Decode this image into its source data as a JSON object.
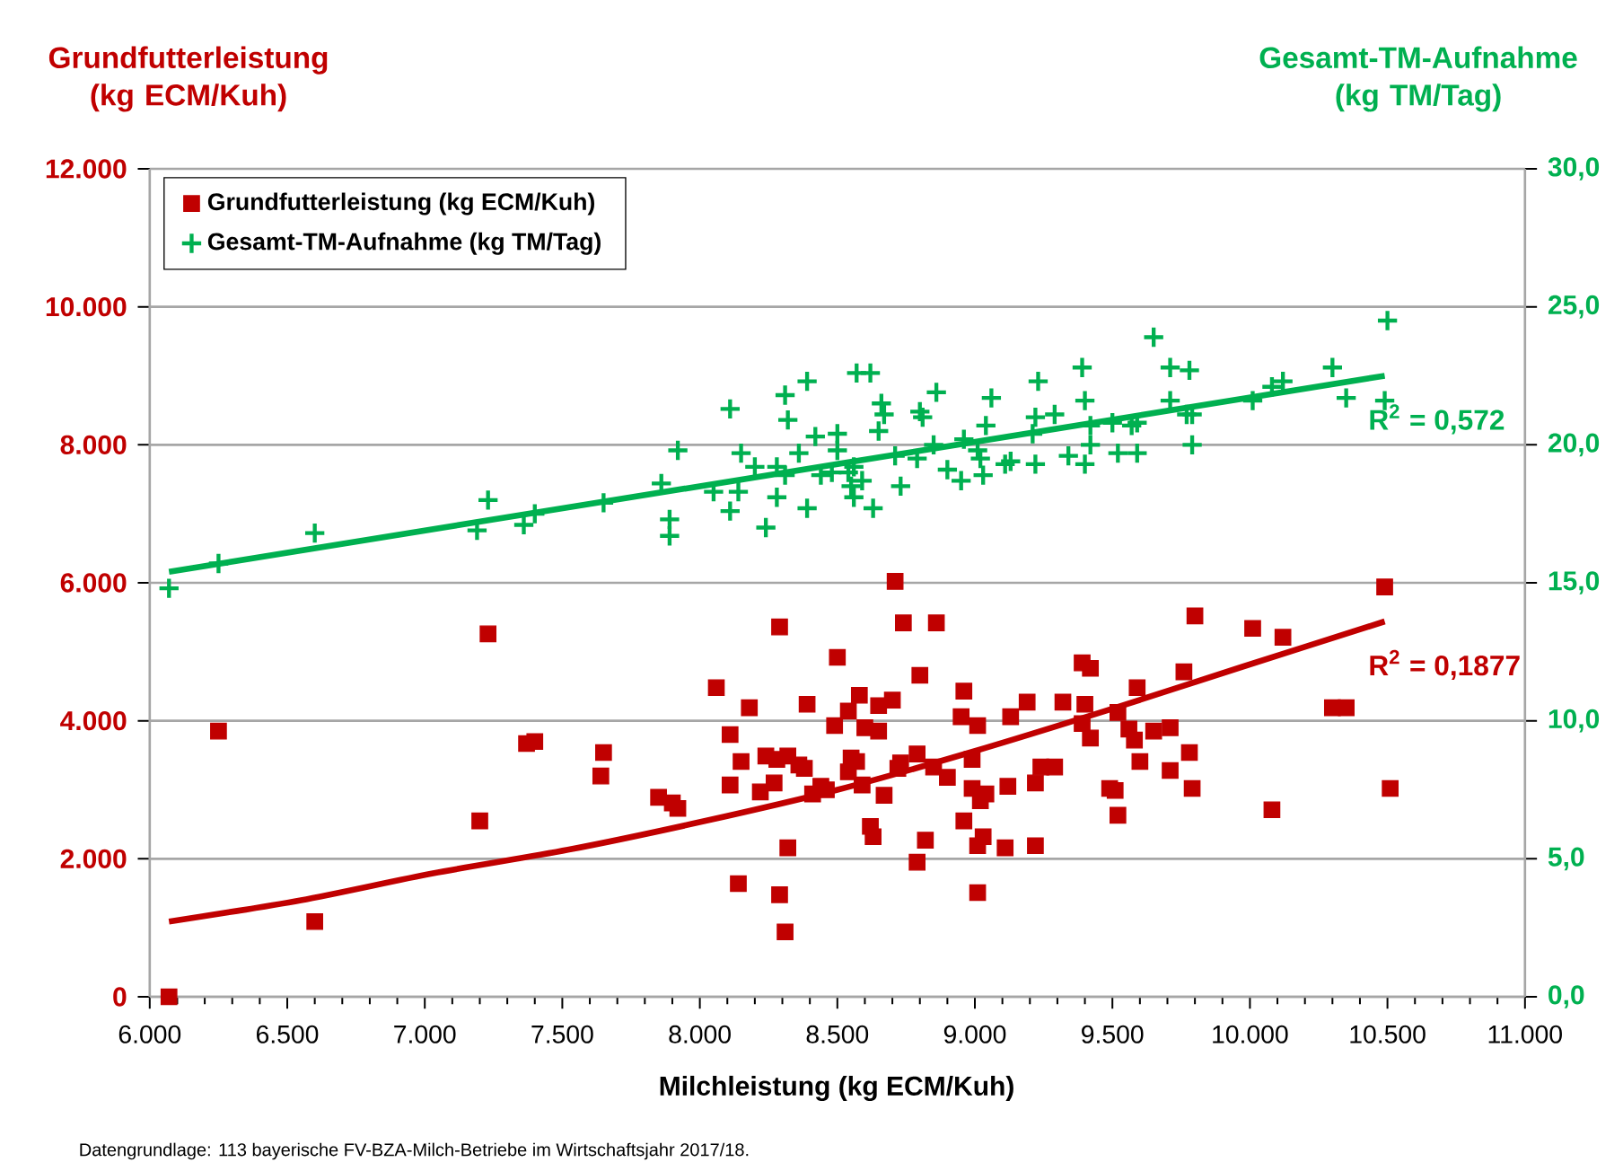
{
  "chart_data": {
    "type": "scatter",
    "xlabel": "Milchleistung   (kg ECM/Kuh)",
    "ylabel": "Grundfutterleistung (kg ECM/Kuh)",
    "y2label": "Gesamt-TM-Aufnahme (kg TM/Tag)",
    "xlim": [
      6000,
      11000
    ],
    "xticks": [
      {
        "value": 6000,
        "label": "6.000"
      },
      {
        "value": 6500,
        "label": "6.500"
      },
      {
        "value": 7000,
        "label": "7.000"
      },
      {
        "value": 7500,
        "label": "7.500"
      },
      {
        "value": 8000,
        "label": "8.000"
      },
      {
        "value": 8500,
        "label": "8.500"
      },
      {
        "value": 9000,
        "label": "9.000"
      },
      {
        "value": 9500,
        "label": "9.500"
      },
      {
        "value": 10000,
        "label": "10.000"
      },
      {
        "value": 10500,
        "label": "10.500"
      },
      {
        "value": 11000,
        "label": "11.000"
      }
    ],
    "ylim": [
      0,
      12000
    ],
    "yticks": [
      0,
      {
        "value": 2000,
        "label": "2.000"
      },
      {
        "value": 4000,
        "label": "4.000"
      },
      {
        "value": 6000,
        "label": "6.000"
      },
      {
        "value": 8000,
        "label": "8.000"
      },
      {
        "value": 10000,
        "label": "10.000"
      },
      {
        "value": 12000,
        "label": "12.000"
      }
    ],
    "y2lim": [
      0,
      30
    ],
    "y2ticks": [
      {
        "value": 0,
        "label": "0,0"
      },
      {
        "value": 5,
        "label": "5,0"
      },
      {
        "value": 10,
        "label": "10,0"
      },
      {
        "value": 15,
        "label": "15,0"
      },
      {
        "value": 20,
        "label": "20,0"
      },
      {
        "value": 25,
        "label": "25,0"
      },
      {
        "value": 30,
        "label": "30,0"
      }
    ],
    "grid": "y",
    "legend": "top left",
    "series": [
      {
        "name": "Grundfutterleistung (kg ECM/Kuh)",
        "marker": "square",
        "color": "#c00000",
        "x": [
          6070,
          6250,
          6600,
          7200,
          7230,
          7370,
          7400,
          7650,
          7640,
          7850,
          7900,
          7920,
          8060,
          8110,
          8150,
          8110,
          8140,
          8180,
          8240,
          8220,
          8290,
          8270,
          8280,
          8320,
          8360,
          8380,
          8320,
          8290,
          8310,
          8390,
          8410,
          8440,
          8710,
          8740,
          8860,
          8500,
          8800,
          8960,
          8580,
          8700,
          8540,
          8650,
          8490,
          8600,
          8650,
          8950,
          9010,
          9130,
          9190,
          9320,
          9400,
          9390,
          9420,
          9590,
          9520,
          9390,
          9420,
          9560,
          9580,
          9650,
          9710,
          9600,
          9760,
          9800,
          10010,
          10120,
          10300,
          10350,
          10490,
          10510,
          10080,
          9790,
          9780,
          9710,
          9490,
          9510,
          9520,
          9290,
          9240,
          9220,
          9220,
          9120,
          9110,
          9040,
          9030,
          9010,
          9020,
          8990,
          8960,
          9010,
          8990,
          8900,
          8850,
          8790,
          8730,
          8720,
          8670,
          8590,
          8540,
          8550,
          8570,
          8460,
          8620,
          8630,
          8820,
          8790
        ],
        "values": [
          0,
          3850,
          1090,
          2550,
          5260,
          3670,
          3700,
          3540,
          3200,
          2890,
          2810,
          2730,
          4480,
          3800,
          3410,
          3070,
          1640,
          4190,
          3490,
          2970,
          5360,
          3100,
          3440,
          3490,
          3360,
          3310,
          2160,
          1480,
          940,
          4240,
          2940,
          3050,
          6020,
          5420,
          5420,
          4920,
          4660,
          4430,
          4370,
          4300,
          4140,
          4220,
          3930,
          3900,
          3850,
          4060,
          3930,
          4060,
          4270,
          4270,
          4240,
          4840,
          4760,
          4480,
          4120,
          3960,
          3750,
          3880,
          3720,
          3850,
          3900,
          3410,
          4710,
          5520,
          5340,
          5210,
          4190,
          4190,
          5940,
          3020,
          2710,
          3020,
          3540,
          3280,
          3020,
          2990,
          2630,
          3330,
          3330,
          3100,
          2190,
          3050,
          2160,
          2940,
          2320,
          2190,
          2840,
          3020,
          2550,
          1510,
          3440,
          3180,
          3330,
          3520,
          3390,
          3310,
          2920,
          3070,
          3260,
          3460,
          3410,
          3000,
          2470,
          2320,
          2270,
          1950
        ]
      },
      {
        "name": "Gesamt-TM-Aufnahme (kg TM/Tag)",
        "marker": "cross",
        "axis": "y2",
        "color": "#00b050",
        "x": [
          6070,
          6250,
          6600,
          7190,
          7230,
          7360,
          7400,
          7650,
          7860,
          7890,
          7890,
          7920,
          8050,
          8110,
          8140,
          8150,
          8110,
          8240,
          8200,
          8280,
          8280,
          8310,
          8320,
          8310,
          8360,
          8390,
          8390,
          8420,
          8440,
          8500,
          8500,
          8560,
          8560,
          8570,
          10500,
          9650,
          8620,
          9390,
          9710,
          9780,
          10300,
          9230,
          8860,
          9060,
          8660,
          8670,
          9400,
          8800,
          8810,
          9220,
          9290,
          9710,
          9770,
          9790,
          10010,
          10080,
          10120,
          10350,
          10490,
          9790,
          8650,
          8480,
          8540,
          8550,
          8590,
          8630,
          8710,
          8730,
          8790,
          8850,
          8900,
          8950,
          8960,
          9010,
          9020,
          9030,
          9040,
          9110,
          9130,
          9210,
          9220,
          9340,
          9400,
          9420,
          9420,
          9500,
          9520,
          9590,
          9570,
          9590
        ],
        "values": [
          14.8,
          15.7,
          16.8,
          16.9,
          18.0,
          17.1,
          17.5,
          17.9,
          18.6,
          17.3,
          16.7,
          19.8,
          18.3,
          17.6,
          18.3,
          19.7,
          21.3,
          17.0,
          19.2,
          19.2,
          18.1,
          21.8,
          20.9,
          18.9,
          19.7,
          22.3,
          17.7,
          20.3,
          18.9,
          20.4,
          19.8,
          19.2,
          18.1,
          22.6,
          24.5,
          23.9,
          22.6,
          22.8,
          22.8,
          22.7,
          22.8,
          22.3,
          21.9,
          21.7,
          21.5,
          21.1,
          21.6,
          21.2,
          21.0,
          21.0,
          21.1,
          21.6,
          21.1,
          21.1,
          21.6,
          22.1,
          22.3,
          21.7,
          21.6,
          20.0,
          20.5,
          19.0,
          19.0,
          18.5,
          18.7,
          17.7,
          19.6,
          18.5,
          19.5,
          20.0,
          19.1,
          18.7,
          20.2,
          19.8,
          19.5,
          18.9,
          20.7,
          19.3,
          19.4,
          20.4,
          19.3,
          19.6,
          19.3,
          20.0,
          20.7,
          20.8,
          19.7,
          19.7,
          20.7,
          20.8
        ]
      },
      {
        "type": "line",
        "marker": "none",
        "color": "#c00000",
        "x": [
          6070,
          6550,
          7030,
          7520,
          8010,
          8500,
          8990,
          9480,
          9970,
          10490
        ],
        "values": [
          1090,
          1400,
          1790,
          2130,
          2540,
          3000,
          3550,
          4150,
          4780,
          5440
        ]
      },
      {
        "type": "line",
        "marker": "none",
        "axis": "y2",
        "color": "#00b050",
        "x": [
          6070,
          10490
        ],
        "values": [
          15.4,
          22.5
        ]
      }
    ],
    "annotations": [
      "R$^{2}$ = 0,1877",
      "R$^{2}$ = 0,572",
      "Datengrundlage: 113 bayerische FV-BZA-Milch-Betriebe im Wirtschaftsjahr 2017/18."
    ]
  }
}
